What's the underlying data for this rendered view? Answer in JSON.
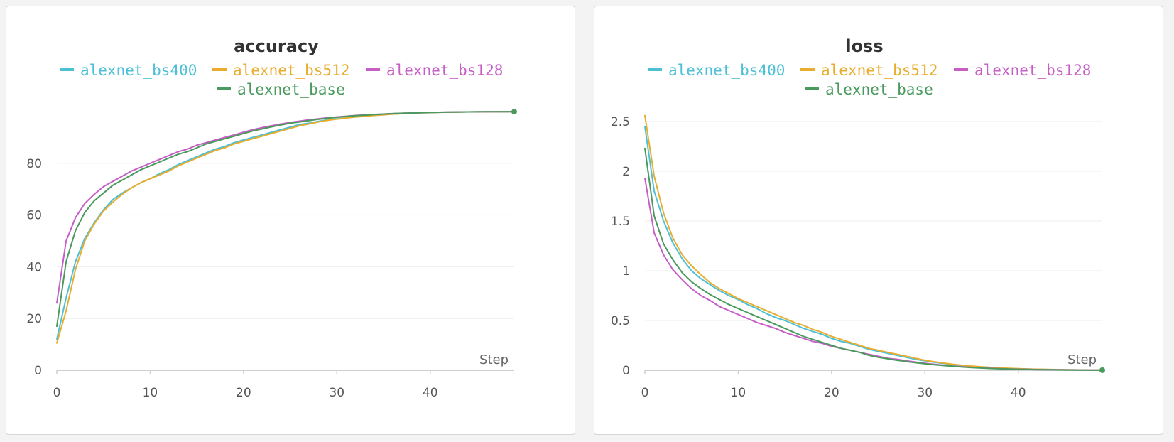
{
  "colors": {
    "alexnet_bs400": "#4dc0d6",
    "alexnet_bs512": "#e8ad2e",
    "alexnet_bs128": "#c65ec6",
    "alexnet_base": "#4a9a5e"
  },
  "chart_data": [
    {
      "type": "line",
      "title": "accuracy",
      "xlabel": "Step",
      "ylabel": "",
      "xlim": [
        0,
        49
      ],
      "ylim": [
        0,
        100
      ],
      "xticks": [
        0,
        10,
        20,
        30,
        40
      ],
      "yticks": [
        0,
        20,
        40,
        60,
        80
      ],
      "grid": true,
      "legend_position": "top-center",
      "series": [
        {
          "name": "alexnet_bs400",
          "x": [
            0,
            1,
            2,
            3,
            4,
            5,
            6,
            7,
            8,
            9,
            10,
            11,
            12,
            13,
            14,
            15,
            16,
            17,
            18,
            19,
            20,
            21,
            22,
            23,
            24,
            25,
            26,
            27,
            28,
            29,
            30,
            31,
            32,
            33,
            34,
            35,
            36,
            37,
            38,
            39,
            40,
            41,
            42,
            43,
            44,
            45,
            46,
            47,
            48,
            49
          ],
          "y": [
            12,
            28,
            42,
            51,
            57,
            62,
            66,
            68.5,
            70.5,
            72.5,
            74,
            76,
            77.5,
            79.5,
            81,
            82.5,
            84,
            85.5,
            86.5,
            88,
            89,
            90,
            91,
            92,
            93,
            94,
            95,
            95.5,
            96.2,
            96.8,
            97.2,
            97.6,
            98,
            98.3,
            98.6,
            98.8,
            99,
            99.2,
            99.35,
            99.5,
            99.6,
            99.7,
            99.75,
            99.8,
            99.85,
            99.88,
            99.9,
            99.92,
            99.94,
            99.95
          ]
        },
        {
          "name": "alexnet_bs512",
          "x": [
            0,
            1,
            2,
            3,
            4,
            5,
            6,
            7,
            8,
            9,
            10,
            11,
            12,
            13,
            14,
            15,
            16,
            17,
            18,
            19,
            20,
            21,
            22,
            23,
            24,
            25,
            26,
            27,
            28,
            29,
            30,
            31,
            32,
            33,
            34,
            35,
            36,
            37,
            38,
            39,
            40,
            41,
            42,
            43,
            44,
            45,
            46,
            47,
            48,
            49
          ],
          "y": [
            10.5,
            23,
            39,
            50,
            56.5,
            61.5,
            65,
            68,
            70.5,
            72.5,
            74,
            75.5,
            77,
            79,
            80.5,
            82,
            83.5,
            85,
            86,
            87.5,
            88.5,
            89.5,
            90.5,
            91.5,
            92.5,
            93.5,
            94.5,
            95.2,
            96,
            96.6,
            97.1,
            97.5,
            97.9,
            98.2,
            98.5,
            98.75,
            99,
            99.2,
            99.35,
            99.5,
            99.6,
            99.7,
            99.75,
            99.8,
            99.85,
            99.88,
            99.9,
            99.92,
            99.94,
            99.95
          ]
        },
        {
          "name": "alexnet_bs128",
          "x": [
            0,
            1,
            2,
            3,
            4,
            5,
            6,
            7,
            8,
            9,
            10,
            11,
            12,
            13,
            14,
            15,
            16,
            17,
            18,
            19,
            20,
            21,
            22,
            23,
            24,
            25,
            26,
            27,
            28,
            29,
            30,
            31,
            32,
            33,
            34,
            35,
            36,
            37,
            38,
            39,
            40,
            41,
            42,
            43,
            44,
            45,
            46,
            47,
            48,
            49
          ],
          "y": [
            26,
            50,
            59,
            64.5,
            68,
            71,
            73,
            75,
            77,
            78.5,
            80,
            81.5,
            83,
            84.5,
            85.5,
            87,
            88,
            89,
            90,
            91,
            92,
            93,
            93.8,
            94.5,
            95.2,
            95.8,
            96.3,
            96.8,
            97.2,
            97.6,
            97.9,
            98.2,
            98.5,
            98.7,
            98.9,
            99.05,
            99.2,
            99.35,
            99.45,
            99.55,
            99.65,
            99.72,
            99.78,
            99.83,
            99.87,
            99.9,
            99.92,
            99.94,
            99.95,
            99.96
          ]
        },
        {
          "name": "alexnet_base",
          "x": [
            0,
            1,
            2,
            3,
            4,
            5,
            6,
            7,
            8,
            9,
            10,
            11,
            12,
            13,
            14,
            15,
            16,
            17,
            18,
            19,
            20,
            21,
            22,
            23,
            24,
            25,
            26,
            27,
            28,
            29,
            30,
            31,
            32,
            33,
            34,
            35,
            36,
            37,
            38,
            39,
            40,
            41,
            42,
            43,
            44,
            45,
            46,
            47,
            48,
            49
          ],
          "y": [
            17,
            42,
            54,
            61,
            65.5,
            68.5,
            71.5,
            73.5,
            75.5,
            77.5,
            79,
            80.5,
            82,
            83.5,
            84.5,
            86,
            87.5,
            88.5,
            89.5,
            90.5,
            91.5,
            92.5,
            93.3,
            94.1,
            94.8,
            95.5,
            96,
            96.5,
            97,
            97.4,
            97.8,
            98.1,
            98.4,
            98.6,
            98.85,
            99.05,
            99.2,
            99.35,
            99.45,
            99.55,
            99.65,
            99.72,
            99.78,
            99.83,
            99.87,
            99.9,
            99.92,
            99.94,
            99.95,
            99.96
          ]
        }
      ]
    },
    {
      "type": "line",
      "title": "loss",
      "xlabel": "Step",
      "ylabel": "",
      "xlim": [
        0,
        49
      ],
      "ylim": [
        0,
        2.6
      ],
      "xticks": [
        0,
        10,
        20,
        30,
        40
      ],
      "yticks": [
        0,
        0.5,
        1,
        1.5,
        2,
        2.5
      ],
      "ytick_labels": [
        "0",
        "0.5",
        "1",
        "1.5",
        "2",
        "2.5"
      ],
      "grid": true,
      "legend_position": "top-center",
      "series": [
        {
          "name": "alexnet_bs400",
          "x": [
            0,
            1,
            2,
            3,
            4,
            5,
            6,
            7,
            8,
            9,
            10,
            11,
            12,
            13,
            14,
            15,
            16,
            17,
            18,
            19,
            20,
            21,
            22,
            23,
            24,
            25,
            26,
            27,
            28,
            29,
            30,
            31,
            32,
            33,
            34,
            35,
            36,
            37,
            38,
            39,
            40,
            41,
            42,
            43,
            44,
            45,
            46,
            47,
            48,
            49
          ],
          "y": [
            2.45,
            1.8,
            1.5,
            1.28,
            1.12,
            1.0,
            0.92,
            0.86,
            0.8,
            0.75,
            0.71,
            0.66,
            0.62,
            0.57,
            0.53,
            0.5,
            0.46,
            0.42,
            0.39,
            0.36,
            0.32,
            0.29,
            0.27,
            0.24,
            0.21,
            0.19,
            0.17,
            0.15,
            0.13,
            0.11,
            0.095,
            0.08,
            0.068,
            0.057,
            0.048,
            0.04,
            0.033,
            0.027,
            0.022,
            0.018,
            0.015,
            0.012,
            0.01,
            0.008,
            0.006,
            0.005,
            0.004,
            0.003,
            0.002,
            0.002
          ]
        },
        {
          "name": "alexnet_bs512",
          "x": [
            0,
            1,
            2,
            3,
            4,
            5,
            6,
            7,
            8,
            9,
            10,
            11,
            12,
            13,
            14,
            15,
            16,
            17,
            18,
            19,
            20,
            21,
            22,
            23,
            24,
            25,
            26,
            27,
            28,
            29,
            30,
            31,
            32,
            33,
            34,
            35,
            36,
            37,
            38,
            39,
            40,
            41,
            42,
            43,
            44,
            45,
            46,
            47,
            48,
            49
          ],
          "y": [
            2.56,
            1.95,
            1.58,
            1.33,
            1.16,
            1.05,
            0.96,
            0.88,
            0.82,
            0.77,
            0.72,
            0.68,
            0.64,
            0.6,
            0.56,
            0.52,
            0.48,
            0.45,
            0.41,
            0.38,
            0.34,
            0.31,
            0.28,
            0.25,
            0.22,
            0.2,
            0.18,
            0.16,
            0.14,
            0.12,
            0.1,
            0.085,
            0.072,
            0.06,
            0.05,
            0.042,
            0.035,
            0.029,
            0.024,
            0.019,
            0.016,
            0.013,
            0.011,
            0.009,
            0.007,
            0.005,
            0.004,
            0.003,
            0.002,
            0.002
          ]
        },
        {
          "name": "alexnet_bs128",
          "x": [
            0,
            1,
            2,
            3,
            4,
            5,
            6,
            7,
            8,
            9,
            10,
            11,
            12,
            13,
            14,
            15,
            16,
            17,
            18,
            19,
            20,
            21,
            22,
            23,
            24,
            25,
            26,
            27,
            28,
            29,
            30,
            31,
            32,
            33,
            34,
            35,
            36,
            37,
            38,
            39,
            40,
            41,
            42,
            43,
            44,
            45,
            46,
            47,
            48,
            49
          ],
          "y": [
            1.93,
            1.38,
            1.16,
            1.01,
            0.91,
            0.82,
            0.75,
            0.7,
            0.64,
            0.6,
            0.56,
            0.52,
            0.48,
            0.45,
            0.42,
            0.38,
            0.35,
            0.32,
            0.29,
            0.27,
            0.24,
            0.22,
            0.2,
            0.18,
            0.16,
            0.14,
            0.12,
            0.11,
            0.095,
            0.082,
            0.07,
            0.06,
            0.05,
            0.042,
            0.035,
            0.029,
            0.024,
            0.02,
            0.016,
            0.013,
            0.011,
            0.009,
            0.007,
            0.006,
            0.005,
            0.004,
            0.003,
            0.002,
            0.002,
            0.001
          ]
        },
        {
          "name": "alexnet_base",
          "x": [
            0,
            1,
            2,
            3,
            4,
            5,
            6,
            7,
            8,
            9,
            10,
            11,
            12,
            13,
            14,
            15,
            16,
            17,
            18,
            19,
            20,
            21,
            22,
            23,
            24,
            25,
            26,
            27,
            28,
            29,
            30,
            31,
            32,
            33,
            34,
            35,
            36,
            37,
            38,
            39,
            40,
            41,
            42,
            43,
            44,
            45,
            46,
            47,
            48,
            49
          ],
          "y": [
            2.23,
            1.55,
            1.27,
            1.11,
            0.98,
            0.89,
            0.82,
            0.76,
            0.71,
            0.66,
            0.62,
            0.58,
            0.54,
            0.5,
            0.46,
            0.42,
            0.38,
            0.34,
            0.31,
            0.28,
            0.25,
            0.22,
            0.2,
            0.18,
            0.15,
            0.13,
            0.115,
            0.1,
            0.088,
            0.076,
            0.065,
            0.055,
            0.047,
            0.04,
            0.033,
            0.027,
            0.022,
            0.018,
            0.015,
            0.012,
            0.01,
            0.008,
            0.006,
            0.005,
            0.004,
            0.003,
            0.002,
            0.002,
            0.001,
            0.001
          ]
        }
      ]
    }
  ]
}
